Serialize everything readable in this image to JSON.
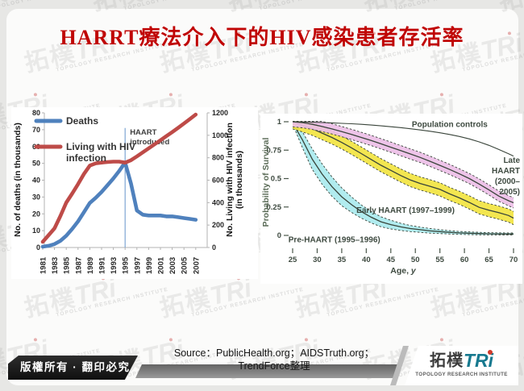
{
  "title": "HARRT療法介入下的HIV感染患者存活率",
  "watermark": {
    "cjk": "拓樸",
    "latin": "TRi",
    "subtitle": "TOPOLOGY RESEARCH INSTITUTE"
  },
  "footer": {
    "copyright": "版權所有 · 翻印必究",
    "source_line1": "Source：PublicHealth.org；AIDSTruth.org；",
    "source_line2": "TrendForce整理",
    "logo": {
      "cjk": "拓樸",
      "latin": "TRi",
      "subtitle": "TOPOLOGY RESEARCH INSTITUTE"
    }
  },
  "chart_data": [
    {
      "type": "line",
      "name": "us-hiv-deaths-vs-living-trend",
      "x": [
        1981,
        1982,
        1983,
        1984,
        1985,
        1986,
        1987,
        1988,
        1989,
        1990,
        1991,
        1992,
        1993,
        1994,
        1995,
        1996,
        1997,
        1998,
        1999,
        2000,
        2001,
        2002,
        2003,
        2004,
        2005,
        2006,
        2007
      ],
      "x_tick_labels": [
        "1981",
        "1983",
        "1985",
        "1987",
        "1989",
        "1991",
        "1993",
        "1995",
        "1997",
        "1999",
        "2001",
        "2003",
        "2005",
        "2007"
      ],
      "series": [
        {
          "name": "Deaths",
          "axis": "left",
          "color": "#4f81bd",
          "values": [
            0.5,
            1,
            2,
            4,
            7,
            11,
            15.5,
            21,
            26.5,
            29.5,
            33,
            37,
            41,
            45.5,
            50.5,
            38,
            22,
            19.5,
            19,
            19,
            19,
            18.5,
            18.5,
            18,
            17.5,
            17,
            16.5
          ]
        },
        {
          "name": "Living with HIV infection",
          "axis": "right",
          "color": "#be4b48",
          "values": [
            50,
            110,
            170,
            280,
            400,
            480,
            565,
            655,
            730,
            750,
            757,
            762,
            765,
            765,
            757,
            778,
            812,
            848,
            884,
            920,
            956,
            992,
            1028,
            1066,
            1105,
            1145,
            1185
          ]
        }
      ],
      "legend": [
        {
          "lines": [
            "Deaths"
          ]
        },
        {
          "lines": [
            "Living with HIV",
            "infection"
          ]
        }
      ],
      "ylabel_left": "No. of deaths  (in thousands)",
      "ylabel_right_lines": [
        "No. Living with HIV infection",
        "(in thousands)"
      ],
      "ylim_left": [
        0,
        80
      ],
      "yticks_left": [
        0,
        10,
        20,
        30,
        40,
        50,
        60,
        70,
        80
      ],
      "ylim_right": [
        0,
        1200
      ],
      "yticks_right": [
        0,
        200,
        400,
        600,
        800,
        1000,
        1200
      ],
      "annotation": {
        "text_lines": [
          "HAART",
          "introduced"
        ],
        "x": 1995
      }
    },
    {
      "type": "line-band",
      "name": "hiv-survival-probability-by-age",
      "xlabel": "Age, y",
      "ylabel": "Probability of Survival",
      "xlim": [
        25,
        70
      ],
      "ylim": [
        0,
        1
      ],
      "xticks": [
        25,
        30,
        35,
        40,
        45,
        50,
        55,
        60,
        65,
        70
      ],
      "yticks": [
        0,
        0.25,
        0.5,
        0.75,
        1
      ],
      "ages": [
        25,
        27,
        29,
        31,
        33,
        35,
        37,
        39,
        41,
        43,
        45,
        47,
        49,
        51,
        53,
        55,
        57,
        59,
        61,
        63,
        65,
        67,
        69,
        70
      ],
      "series": [
        {
          "name": "Pre-HAART (1995–1996)",
          "band_color": "#aaeaee",
          "center": [
            0.99,
            0.84,
            0.67,
            0.54,
            0.43,
            0.34,
            0.27,
            0.21,
            0.16,
            0.12,
            0.095,
            0.075,
            0.06,
            0.05,
            0.04,
            0.033,
            0.027,
            0.022,
            0.019,
            0.016,
            0.014,
            0.013,
            0.012,
            0.012
          ],
          "half": [
            0.01,
            0.07,
            0.09,
            0.09,
            0.085,
            0.078,
            0.068,
            0.058,
            0.05,
            0.044,
            0.038,
            0.032,
            0.027,
            0.023,
            0.02,
            0.017,
            0.015,
            0.013,
            0.012,
            0.011,
            0.01,
            0.01,
            0.009,
            0.009
          ],
          "label": {
            "age": 33.5,
            "p": -0.06
          }
        },
        {
          "name": "Early HAART (1997–1999)",
          "band_color": "#f2e441",
          "center": [
            0.995,
            0.968,
            0.938,
            0.9,
            0.862,
            0.818,
            0.77,
            0.72,
            0.668,
            0.617,
            0.572,
            0.527,
            0.487,
            0.457,
            0.432,
            0.405,
            0.365,
            0.33,
            0.29,
            0.247,
            0.222,
            0.2,
            0.175,
            0.152
          ],
          "half": 0.058,
          "label": {
            "age": 48,
            "p": 0.2
          }
        },
        {
          "name": "Late HAART (2000–2005)",
          "band_color": "#edbfe7",
          "center": [
            1.0,
            0.992,
            0.977,
            0.958,
            0.937,
            0.913,
            0.888,
            0.862,
            0.835,
            0.806,
            0.776,
            0.746,
            0.716,
            0.686,
            0.652,
            0.616,
            0.58,
            0.541,
            0.5,
            0.452,
            0.4,
            0.346,
            0.305,
            0.287
          ],
          "half": 0.045,
          "label_lines": [
            "Late",
            "HAART",
            "(2000–",
            "2005)"
          ]
        },
        {
          "name": "Population controls",
          "center": [
            1.0,
            0.998,
            0.996,
            0.993,
            0.99,
            0.986,
            0.982,
            0.977,
            0.971,
            0.964,
            0.956,
            0.948,
            0.938,
            0.928,
            0.916,
            0.903,
            0.888,
            0.87,
            0.849,
            0.823,
            0.792,
            0.756,
            0.718,
            0.698
          ],
          "label": {
            "age": 57,
            "p": 0.955
          }
        }
      ]
    }
  ]
}
